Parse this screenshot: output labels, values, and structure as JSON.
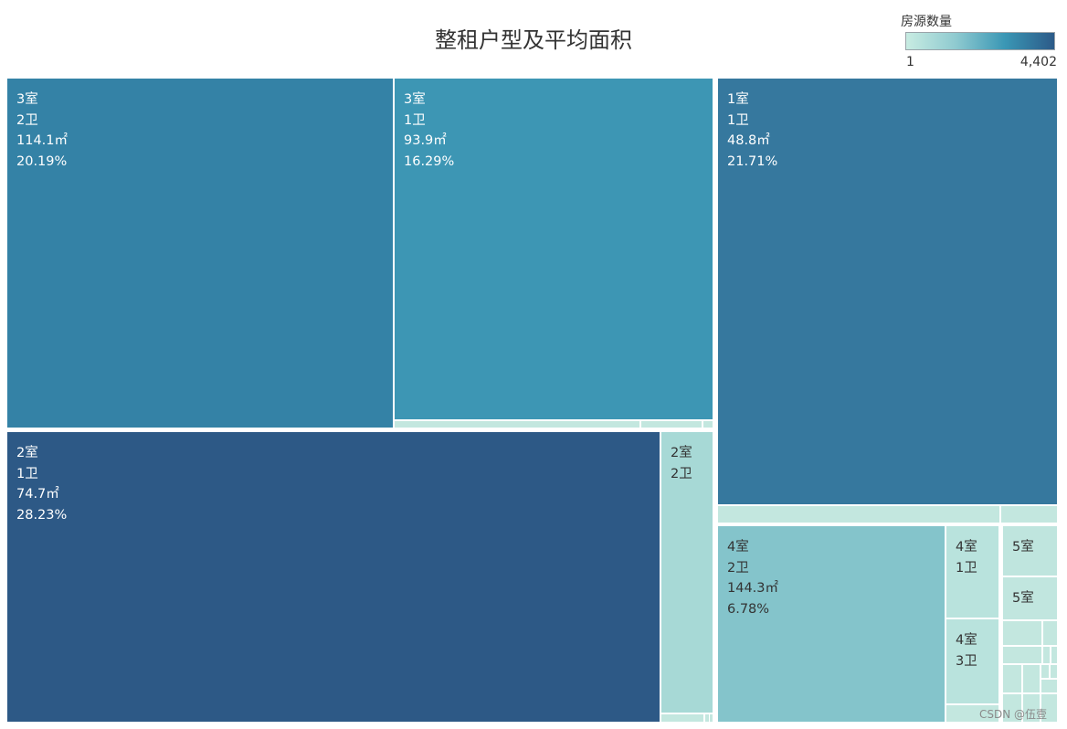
{
  "chart_data": {
    "type": "treemap",
    "title": "整租户型及平均面积",
    "legend": {
      "title": "房源数量",
      "min_label": "1",
      "max_label": "4,402",
      "colors": [
        "#c8ece2",
        "#8fcad0",
        "#3a97b5",
        "#2c5a88"
      ]
    },
    "cells": [
      {
        "rooms": "2室",
        "baths": "1卫",
        "area": "74.7㎡",
        "share": "28.23%",
        "color": "#2d5986",
        "text_color": "#ffffff"
      },
      {
        "rooms": "1室",
        "baths": "1卫",
        "area": "48.8㎡",
        "share": "21.71%",
        "color": "#36789e",
        "text_color": "#ffffff"
      },
      {
        "rooms": "3室",
        "baths": "2卫",
        "area": "114.1㎡",
        "share": "20.19%",
        "color": "#3482a6",
        "text_color": "#ffffff"
      },
      {
        "rooms": "3室",
        "baths": "1卫",
        "area": "93.9㎡",
        "share": "16.29%",
        "color": "#3d96b4",
        "text_color": "#ffffff"
      },
      {
        "rooms": "4室",
        "baths": "2卫",
        "area": "144.3㎡",
        "share": "6.78%",
        "color": "#84c4cb",
        "text_color": "#333333"
      },
      {
        "rooms": "2室",
        "baths": "2卫",
        "area": "",
        "share": "",
        "color": "#a7d9d6",
        "text_color": "#333333"
      },
      {
        "rooms": "4室",
        "baths": "1卫",
        "area": "",
        "share": "",
        "color": "#b9e3dd",
        "text_color": "#333333"
      },
      {
        "rooms": "4室",
        "baths": "3卫",
        "area": "",
        "share": "",
        "color": "#b9e3dd",
        "text_color": "#333333"
      },
      {
        "rooms": "5室",
        "baths": "",
        "area": "",
        "share": "",
        "color": "#bfe5de",
        "text_color": "#333333"
      },
      {
        "rooms": "5室",
        "baths": "",
        "area": "",
        "share": "",
        "color": "#c1e6df",
        "text_color": "#333333"
      }
    ],
    "small_cell_color": "#c3e7df"
  },
  "watermark": "CSDN @伍壹"
}
